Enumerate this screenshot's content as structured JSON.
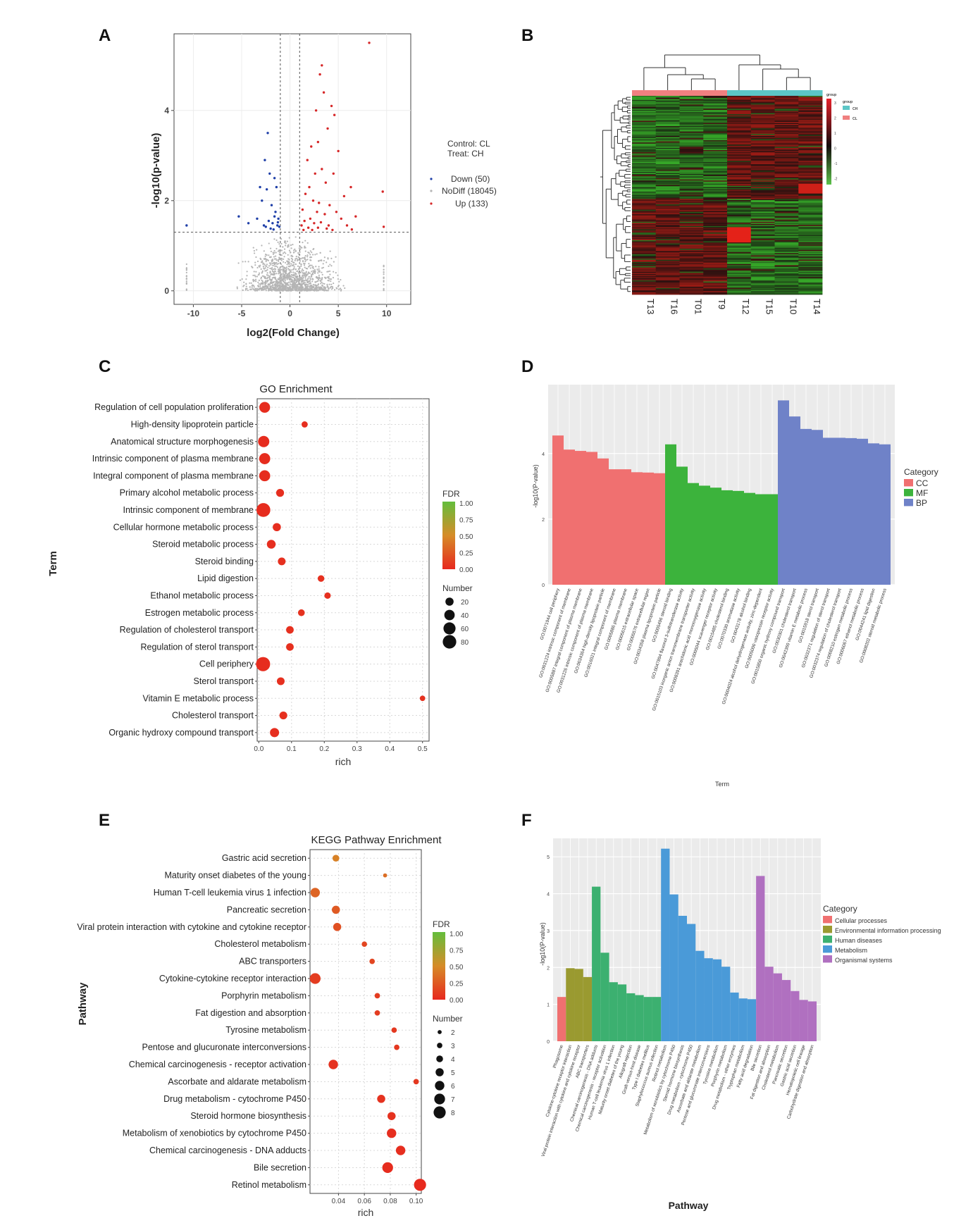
{
  "panels": {
    "A": {
      "label": "A",
      "xlabel": "log2(Fold Change)",
      "ylabel": "-log10(p-value)",
      "control": "Control: CL",
      "treat": "Treat:    CH",
      "legend": [
        "Down (50)",
        "NoDiff (18045)",
        "Up (133)"
      ],
      "xticks": [
        "-10",
        "-5",
        "0",
        "5",
        "10"
      ],
      "yticks": [
        "0",
        "2",
        "4"
      ]
    },
    "B": {
      "label": "B",
      "legend_title": "group",
      "legend": [
        "CH",
        "CL"
      ],
      "scale_title": "group",
      "scale_ticks": [
        "3",
        "2",
        "1",
        "0",
        "-1",
        "-2"
      ],
      "samples": [
        "T13",
        "T16",
        "T01",
        "T9",
        "T12",
        "T15",
        "T10",
        "T14"
      ]
    },
    "C": {
      "label": "C"
    },
    "D": {
      "label": "D"
    },
    "E": {
      "label": "E"
    },
    "F": {
      "label": "F"
    }
  },
  "colors": {
    "up": "#d62728",
    "down": "#1f3fa8",
    "nodiff": "#b5b5b5",
    "CC": "#f07070",
    "MF": "#3cb33c",
    "BP": "#6f82c8"
  },
  "chart_data": [
    {
      "id": "A",
      "type": "scatter",
      "title": "",
      "xlabel": "log2(Fold Change)",
      "ylabel": "-log10(p-value)",
      "xlim": [
        -12,
        12.5
      ],
      "ylim": [
        -0.3,
        5.7
      ],
      "thresholds": {
        "x": [
          -1,
          1
        ],
        "y": 1.3
      },
      "series": [
        {
          "name": "Down (50)",
          "color": "#1f3fa8",
          "points": [
            [
              -2.3,
              3.5
            ],
            [
              -2.6,
              2.9
            ],
            [
              -2.1,
              2.6
            ],
            [
              -3.1,
              2.3
            ],
            [
              -2.9,
              2.0
            ],
            [
              -2.4,
              2.25
            ],
            [
              -1.6,
              2.5
            ],
            [
              -1.4,
              2.3
            ],
            [
              -1.9,
              1.9
            ],
            [
              -1.2,
              1.6
            ],
            [
              -1.5,
              1.75
            ],
            [
              -1.8,
              1.5
            ],
            [
              -2.2,
              1.55
            ],
            [
              -3.4,
              1.6
            ],
            [
              -2.7,
              1.45
            ],
            [
              -1.3,
              1.45
            ],
            [
              -1.1,
              1.42
            ],
            [
              -4.3,
              1.5
            ],
            [
              -5.3,
              1.65
            ],
            [
              -10.7,
              1.45
            ],
            [
              -1.7,
              1.36
            ],
            [
              -2.0,
              1.38
            ],
            [
              -1.25,
              1.52
            ],
            [
              -1.6,
              1.65
            ],
            [
              -2.5,
              1.42
            ]
          ]
        },
        {
          "name": "Up (133)",
          "color": "#d62728",
          "points": [
            [
              8.2,
              5.5
            ],
            [
              3.3,
              5.0
            ],
            [
              3.1,
              4.8
            ],
            [
              3.5,
              4.4
            ],
            [
              4.3,
              4.1
            ],
            [
              4.6,
              3.9
            ],
            [
              2.7,
              4.0
            ],
            [
              3.9,
              3.6
            ],
            [
              2.9,
              3.3
            ],
            [
              2.2,
              3.2
            ],
            [
              5.0,
              3.1
            ],
            [
              1.8,
              2.9
            ],
            [
              3.3,
              2.7
            ],
            [
              2.6,
              2.6
            ],
            [
              4.5,
              2.6
            ],
            [
              2.0,
              2.3
            ],
            [
              3.7,
              2.4
            ],
            [
              5.6,
              2.1
            ],
            [
              6.3,
              2.3
            ],
            [
              9.6,
              2.2
            ],
            [
              1.6,
              2.15
            ],
            [
              2.4,
              2.0
            ],
            [
              3.0,
              1.95
            ],
            [
              4.1,
              1.9
            ],
            [
              1.3,
              1.8
            ],
            [
              2.8,
              1.75
            ],
            [
              3.6,
              1.7
            ],
            [
              4.8,
              1.75
            ],
            [
              5.3,
              1.6
            ],
            [
              6.8,
              1.65
            ],
            [
              1.5,
              1.55
            ],
            [
              2.1,
              1.6
            ],
            [
              2.5,
              1.5
            ],
            [
              3.2,
              1.52
            ],
            [
              4.0,
              1.45
            ],
            [
              1.2,
              1.45
            ],
            [
              1.9,
              1.4
            ],
            [
              2.9,
              1.4
            ],
            [
              3.8,
              1.38
            ],
            [
              5.9,
              1.45
            ],
            [
              9.7,
              1.42
            ],
            [
              1.4,
              1.35
            ],
            [
              2.3,
              1.35
            ],
            [
              4.4,
              1.35
            ],
            [
              6.4,
              1.36
            ]
          ]
        }
      ]
    },
    {
      "id": "B",
      "type": "heatmap",
      "title": "",
      "samples": [
        "T13",
        "T16",
        "T01",
        "T9",
        "T12",
        "T15",
        "T10",
        "T14"
      ],
      "groups": [
        "CL",
        "CL",
        "CL",
        "CL",
        "CH",
        "CH",
        "CH",
        "CH"
      ],
      "scale": [
        -2,
        3
      ],
      "rows": 183
    },
    {
      "id": "C",
      "type": "scatter",
      "title": "GO Enrichment",
      "xlabel": "rich",
      "ylabel": "Term",
      "xlim": [
        -0.005,
        0.52
      ],
      "xticks": [
        "0.0",
        "0.1",
        "0.2",
        "0.3",
        "0.4",
        "0.5"
      ],
      "fdr_title": "FDR",
      "fdr_ticks": [
        "1.00",
        "0.75",
        "0.50",
        "0.25",
        "0.00"
      ],
      "size_title": "Number",
      "size_ticks": [
        "20",
        "40",
        "60",
        "80"
      ],
      "terms": [
        "Regulation of cell population proliferation",
        "High-density lipoprotein particle",
        "Anatomical structure morphogenesis",
        "Intrinsic component of plasma membrane",
        "Integral component of plasma membrane",
        "Primary alcohol metabolic process",
        "Intrinsic component of membrane",
        "Cellular hormone metabolic process",
        "Steroid metabolic process",
        "Steroid binding",
        "Lipid digestion",
        "Ethanol metabolic process",
        "Estrogen metabolic process",
        "Regulation of cholesterol transport",
        "Regulation of sterol transport",
        "Cell periphery",
        "Sterol transport",
        "Vitamin E metabolic process",
        "Cholesterol transport",
        "Organic hydroxy compound transport"
      ],
      "rich": [
        0.018,
        0.14,
        0.015,
        0.018,
        0.018,
        0.065,
        0.014,
        0.055,
        0.038,
        0.07,
        0.19,
        0.21,
        0.13,
        0.095,
        0.095,
        0.013,
        0.067,
        0.5,
        0.075,
        0.048
      ],
      "number": [
        45,
        8,
        50,
        48,
        47,
        18,
        85,
        20,
        25,
        17,
        10,
        9,
        11,
        16,
        16,
        90,
        17,
        5,
        18,
        28
      ],
      "fdr": [
        0.02,
        0.03,
        0.02,
        0.02,
        0.02,
        0.03,
        0.02,
        0.03,
        0.03,
        0.04,
        0.04,
        0.04,
        0.05,
        0.04,
        0.04,
        0.02,
        0.04,
        0.05,
        0.04,
        0.03
      ]
    },
    {
      "id": "D",
      "type": "bar",
      "title": "",
      "xlabel": "Term",
      "ylabel": "-log10(P-value)",
      "ylim": [
        0,
        6.1
      ],
      "yticks": [
        "0",
        "2",
        "4"
      ],
      "legend_title": "Category",
      "legend": [
        "CC",
        "MF",
        "BP"
      ],
      "categories": [
        "GO:0071944 cell periphery",
        "GO:0031224 intrinsic component of membrane",
        "GO:0005887 integral component of plasma membrane",
        "GO:0031226 intrinsic component of plasma membrane",
        "GO:0034364 high-density lipoprotein particle",
        "GO:0016021 integral component of membrane",
        "GO:0005886 plasma membrane",
        "GO:0005615 extracellular space",
        "GO:0005576 extracellular region",
        "GO:0034358 plasma lipoprotein particle",
        "GO:0005496 steroid binding",
        "GO:0047894 flavonol 3-sulfotransferase activity",
        "GO:0015103 inorganic anion transmembrane transporter activity",
        "GO:0008391 arachidonic acid monooxygenase activity",
        "GO:0005044 scavenger receptor activity",
        "GO:0015485 cholesterol binding",
        "GO:0070330 aromatase activity",
        "GO:0043178 alcohol binding",
        "GO:0004024 alcohol dehydrogenase activity, zinc-dependent",
        "GO:0005000 vasopressin receptor activity",
        "GO:0015850 organic hydroxy compound transport",
        "GO:0030301 cholesterol transport",
        "GO:0042360 vitamin E metabolic process",
        "GO:0015918 sterol transport",
        "GO:0032371 regulation of sterol transport",
        "GO:0032374 regulation of cholesterol transport",
        "GO:0008210 estrogen metabolic process",
        "GO:0006067 ethanol metabolic process",
        "GO:0044241 lipid digestion",
        "GO:0008202 steroid metabolic process"
      ],
      "groups": [
        "CC",
        "CC",
        "CC",
        "CC",
        "CC",
        "CC",
        "CC",
        "CC",
        "CC",
        "CC",
        "MF",
        "MF",
        "MF",
        "MF",
        "MF",
        "MF",
        "MF",
        "MF",
        "MF",
        "MF",
        "BP",
        "BP",
        "BP",
        "BP",
        "BP",
        "BP",
        "BP",
        "BP",
        "BP",
        "BP"
      ],
      "values": [
        4.55,
        4.12,
        4.08,
        4.05,
        3.85,
        3.52,
        3.52,
        3.43,
        3.42,
        3.4,
        4.28,
        3.6,
        3.1,
        3.02,
        2.96,
        2.88,
        2.86,
        2.8,
        2.76,
        2.76,
        5.62,
        5.13,
        4.75,
        4.72,
        4.48,
        4.48,
        4.47,
        4.45,
        4.31,
        4.28
      ]
    },
    {
      "id": "E",
      "type": "scatter",
      "title": "KEGG Pathway Enrichment",
      "xlabel": "rich",
      "ylabel": "Pathway",
      "xlim": [
        0.018,
        0.104
      ],
      "xticks": [
        "0.04",
        "0.06",
        "0.08",
        "0.10"
      ],
      "fdr_title": "FDR",
      "fdr_ticks": [
        "1.00",
        "0.75",
        "0.50",
        "0.25",
        "0.00"
      ],
      "size_title": "Number",
      "size_ticks": [
        "2",
        "3",
        "4",
        "5",
        "6",
        "7",
        "8"
      ],
      "terms": [
        "Gastric acid secretion",
        "Maturity onset diabetes of the young",
        "Human T-cell leukemia virus 1 infection",
        "Pancreatic secretion",
        "Viral protein interaction with cytokine and cytokine receptor",
        "Cholesterol metabolism",
        "ABC transporters",
        "Cytokine-cytokine receptor interaction",
        "Porphyrin metabolism",
        "Fat digestion and absorption",
        "Tyrosine metabolism",
        "Pentose and glucuronate interconversions",
        "Chemical carcinogenesis - receptor activation",
        "Ascorbate and aldarate metabolism",
        "Drug metabolism - cytochrome P450",
        "Steroid hormone biosynthesis",
        "Metabolism of xenobiotics by cytochrome P450",
        "Chemical carcinogenesis - DNA adducts",
        "Bile secretion",
        "Retinol metabolism"
      ],
      "rich": [
        0.038,
        0.076,
        0.022,
        0.038,
        0.039,
        0.06,
        0.066,
        0.022,
        0.07,
        0.07,
        0.083,
        0.085,
        0.036,
        0.1,
        0.073,
        0.081,
        0.081,
        0.088,
        0.078,
        0.103
      ],
      "number": [
        4,
        2,
        6,
        5,
        5,
        3,
        3,
        7,
        3,
        3,
        3,
        3,
        6,
        3,
        5,
        5,
        6,
        6,
        7,
        8
      ],
      "fdr": [
        0.45,
        0.35,
        0.3,
        0.25,
        0.2,
        0.15,
        0.15,
        0.1,
        0.1,
        0.1,
        0.08,
        0.08,
        0.05,
        0.08,
        0.05,
        0.05,
        0.03,
        0.03,
        0.02,
        0.01
      ]
    },
    {
      "id": "F",
      "type": "bar",
      "title": "",
      "xlabel": "Pathway",
      "ylabel": "-log10(P-value)",
      "ylim": [
        0,
        5.5
      ],
      "yticks": [
        "0",
        "1",
        "2",
        "3",
        "4",
        "5"
      ],
      "legend_title": "Category",
      "legend": [
        "Cellular processes",
        "Environmental information processing",
        "Human diseases",
        "Metabolism",
        "Organismal systems"
      ],
      "legend_colors": [
        "#f07070",
        "#9a9a30",
        "#3cb070",
        "#4a9ad8",
        "#b070c0"
      ],
      "categories": [
        "Phagosome",
        "Cytokine-cytokine receptor interaction",
        "Viral protein interaction with cytokine and cytokine receptor",
        "ABC transporters",
        "Chemical carcinogenesis - DNA adducts",
        "Chemical carcinogenesis - receptor activation",
        "Human T-cell leukemia virus 1 infection",
        "Maturity onset diabetes of the young",
        "Allograft rejection",
        "Graft-versus-host disease",
        "Type I diabetes mellitus",
        "Staphylococcus aureus infection",
        "Retinol metabolism",
        "Metabolism of xenobiotics by cytochrome P450",
        "Steroid hormone biosynthesis",
        "Drug metabolism - cytochrome P450",
        "Ascorbate and aldarate metabolism",
        "Pentose and glucuronate interconversions",
        "Tyrosine metabolism",
        "Porphyrin metabolism",
        "Drug metabolism - other enzymes",
        "Tryptophan metabolism",
        "Fatty acid degradation",
        "Bile secretion",
        "Fat digestion and absorption",
        "Cholesterol metabolism",
        "Pancreatic secretion",
        "Gastric acid secretion",
        "Hematopoietic cell lineage",
        "Carbohydrate digestion and absorption"
      ],
      "groups": [
        "Cellular processes",
        "Environmental information processing",
        "Environmental information processing",
        "Environmental information processing",
        "Human diseases",
        "Human diseases",
        "Human diseases",
        "Human diseases",
        "Human diseases",
        "Human diseases",
        "Human diseases",
        "Human diseases",
        "Metabolism",
        "Metabolism",
        "Metabolism",
        "Metabolism",
        "Metabolism",
        "Metabolism",
        "Metabolism",
        "Metabolism",
        "Metabolism",
        "Metabolism",
        "Metabolism",
        "Organismal systems",
        "Organismal systems",
        "Organismal systems",
        "Organismal systems",
        "Organismal systems",
        "Organismal systems",
        "Organismal systems"
      ],
      "values": [
        1.2,
        1.98,
        1.96,
        1.74,
        4.19,
        2.4,
        1.6,
        1.54,
        1.3,
        1.25,
        1.2,
        1.2,
        5.22,
        3.98,
        3.4,
        3.18,
        2.45,
        2.25,
        2.22,
        2.02,
        1.32,
        1.16,
        1.14,
        4.48,
        2.02,
        1.84,
        1.66,
        1.36,
        1.12,
        1.08
      ]
    }
  ]
}
